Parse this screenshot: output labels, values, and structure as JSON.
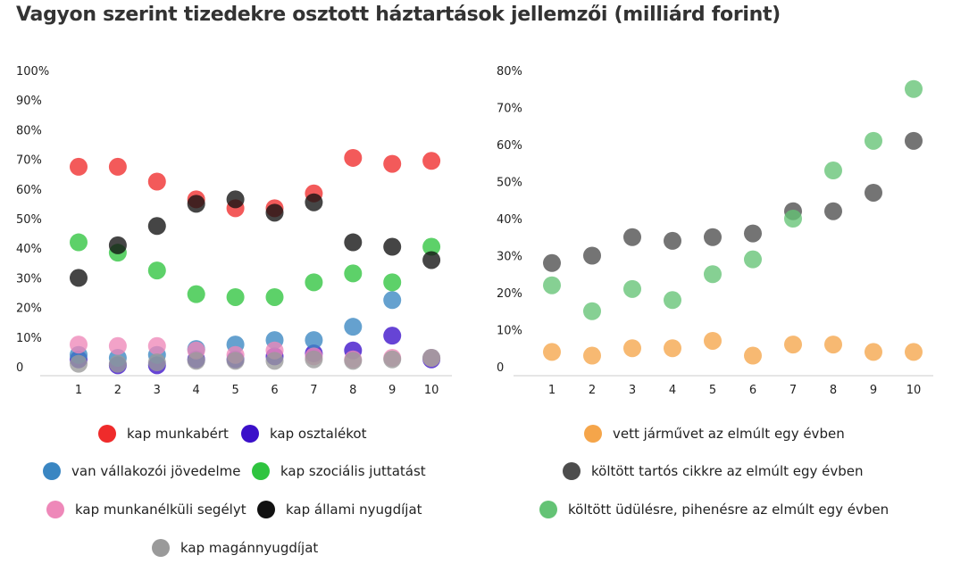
{
  "title": "Vagyon szerint tizedekre osztott háztartások jellemzői (milliárd forint)",
  "chart_data": [
    {
      "type": "scatter",
      "categories": [
        "1",
        "2",
        "3",
        "4",
        "5",
        "6",
        "7",
        "8",
        "9",
        "10"
      ],
      "yticks": [
        "0",
        "10%",
        "20%",
        "30%",
        "40%",
        "50%",
        "60%",
        "70%",
        "80%",
        "90%",
        "100%"
      ],
      "ylim": [
        0,
        100
      ],
      "legend_placement": "bottom",
      "series": [
        {
          "name": "kap munkabért",
          "color": "#ef2b2b",
          "values": [
            67.5,
            67.5,
            62.5,
            56.5,
            53.5,
            53.5,
            58.5,
            70.5,
            68.5,
            69.5
          ]
        },
        {
          "name": "kap osztalékot",
          "color": "#3b10c9",
          "values": [
            2.5,
            0.5,
            0.5,
            2.5,
            2.5,
            3.5,
            4.5,
            5.5,
            10.5,
            2.5
          ]
        },
        {
          "name": "van vállakozói jövedelme",
          "color": "#3a86c2",
          "values": [
            4,
            3,
            4,
            6,
            7.5,
            9,
            9,
            13.5,
            22.5,
            3
          ]
        },
        {
          "name": "kap szociális juttatást",
          "color": "#2fc43f",
          "values": [
            42,
            38.5,
            32.5,
            24.5,
            23.5,
            23.5,
            28.5,
            31.5,
            28.5,
            40.5
          ]
        },
        {
          "name": "kap munkanélküli segélyt",
          "color": "#ee88b9",
          "values": [
            7.5,
            7,
            7,
            5.5,
            4,
            5.5,
            3.5,
            2.5,
            3,
            3
          ]
        },
        {
          "name": "kap állami nyugdíjat",
          "color": "#111111",
          "values": [
            30,
            41,
            47.5,
            55,
            56.5,
            52,
            55.5,
            42,
            40.5,
            36
          ]
        },
        {
          "name": "kap magánnyugdíjat",
          "color": "#9a9a9a",
          "values": [
            1,
            1,
            1.5,
            2,
            2,
            2,
            2.5,
            2,
            2.5,
            3
          ]
        }
      ]
    },
    {
      "type": "scatter",
      "categories": [
        "1",
        "2",
        "3",
        "4",
        "5",
        "6",
        "7",
        "8",
        "9",
        "10"
      ],
      "yticks": [
        "0",
        "10%",
        "20%",
        "30%",
        "40%",
        "50%",
        "60%",
        "70%",
        "80%"
      ],
      "ylim": [
        0,
        80
      ],
      "legend_placement": "bottom",
      "series": [
        {
          "name": "vett járművet az elmúlt egy évben",
          "color": "#f5a54a",
          "values": [
            4,
            3,
            5,
            5,
            7,
            3,
            6,
            6,
            4,
            4
          ]
        },
        {
          "name": "költött tartós cikkre az elmúlt egy évben",
          "color": "#4d4d4d",
          "values": [
            28,
            30,
            35,
            34,
            35,
            36,
            42,
            42,
            47,
            61
          ]
        },
        {
          "name": "költött üdülésre, pihenésre az elmúlt egy évben",
          "color": "#64c375",
          "values": [
            22,
            15,
            21,
            18,
            25,
            29,
            40,
            53,
            61,
            75
          ]
        }
      ]
    }
  ]
}
